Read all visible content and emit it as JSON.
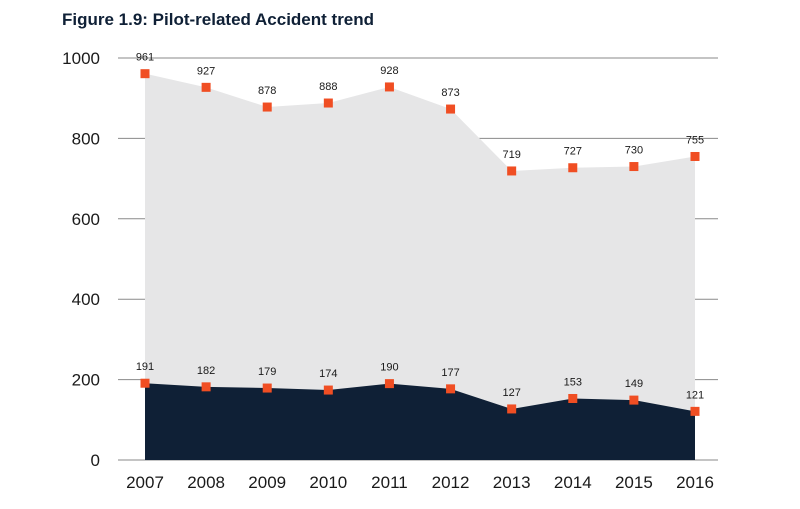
{
  "chart_data": {
    "type": "area",
    "title": "Figure 1.9: Pilot-related Accident trend",
    "xlabel": "",
    "ylabel": "",
    "categories": [
      "2007",
      "2008",
      "2009",
      "2010",
      "2011",
      "2012",
      "2013",
      "2014",
      "2015",
      "2016"
    ],
    "series": [
      {
        "values": [
          961,
          927,
          878,
          888,
          928,
          873,
          719,
          727,
          730,
          755
        ],
        "color": "#e6e6e7"
      },
      {
        "values": [
          191,
          182,
          179,
          174,
          190,
          177,
          127,
          153,
          149,
          121
        ],
        "color": "#0f2036"
      }
    ],
    "marker_color": "#f04e23",
    "ylim": [
      0,
      1000
    ],
    "yticks": [
      "0",
      "200",
      "400",
      "600",
      "800",
      "1000"
    ],
    "grid": true,
    "legend": "none"
  }
}
